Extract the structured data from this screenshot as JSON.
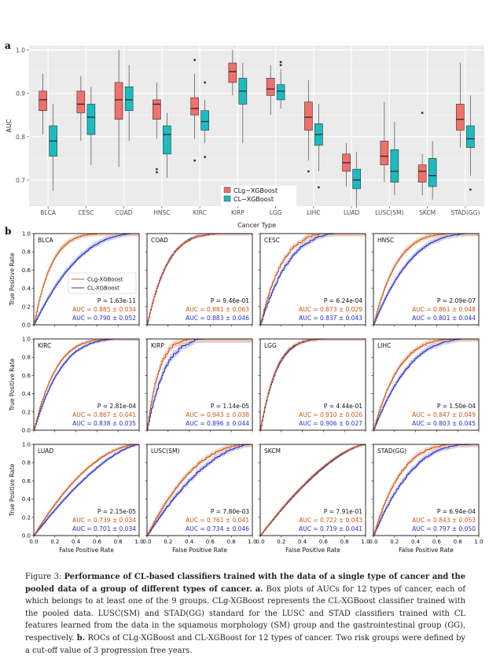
{
  "panel_a": {
    "letter": "a",
    "xlabel": "Cancer Type",
    "ylabel": "AUC",
    "legend": [
      "CLg−XGBoost",
      "CL−XGBoost"
    ],
    "colors": {
      "clg": "#f0706a",
      "cl": "#1bbcc0",
      "grid": "#ffffff",
      "panel": "#ebebeb"
    },
    "chart_data": {
      "type": "box",
      "ylim": [
        0.64,
        1.01
      ],
      "yticks": [
        "0.7",
        "0.8",
        "0.9",
        "1.0"
      ],
      "yticks_values": [
        0.7,
        0.8,
        0.9,
        1.0
      ],
      "categories": [
        "BLCA",
        "CESC",
        "COAD",
        "HNSC",
        "KIRC",
        "KIRP",
        "LGG",
        "LIHC",
        "LUAD",
        "LUSC(SM)",
        "SKCM",
        "STAD(GG)"
      ],
      "series": [
        {
          "name": "CLg−XGBoost",
          "boxes": [
            {
              "q1": 0.86,
              "med": 0.885,
              "q3": 0.905,
              "lo": 0.805,
              "hi": 0.945,
              "out": []
            },
            {
              "q1": 0.855,
              "med": 0.875,
              "q3": 0.905,
              "lo": 0.79,
              "hi": 0.94,
              "out": []
            },
            {
              "q1": 0.84,
              "med": 0.885,
              "q3": 0.925,
              "lo": 0.73,
              "hi": 1.0,
              "out": []
            },
            {
              "q1": 0.84,
              "med": 0.875,
              "q3": 0.885,
              "lo": 0.795,
              "hi": 0.925,
              "out": [
                0.725,
                0.718
              ]
            },
            {
              "q1": 0.85,
              "med": 0.865,
              "q3": 0.89,
              "lo": 0.795,
              "hi": 0.945,
              "out": [
                0.977,
                0.745
              ]
            },
            {
              "q1": 0.925,
              "med": 0.95,
              "q3": 0.97,
              "lo": 0.895,
              "hi": 1.0,
              "out": []
            },
            {
              "q1": 0.895,
              "med": 0.91,
              "q3": 0.935,
              "lo": 0.85,
              "hi": 0.965,
              "out": []
            },
            {
              "q1": 0.815,
              "med": 0.845,
              "q3": 0.88,
              "lo": 0.745,
              "hi": 0.93,
              "out": [
                0.72
              ]
            },
            {
              "q1": 0.72,
              "med": 0.74,
              "q3": 0.76,
              "lo": 0.685,
              "hi": 0.785,
              "out": []
            },
            {
              "q1": 0.735,
              "med": 0.755,
              "q3": 0.79,
              "lo": 0.695,
              "hi": 0.88,
              "out": []
            },
            {
              "q1": 0.695,
              "med": 0.72,
              "q3": 0.735,
              "lo": 0.665,
              "hi": 0.76,
              "out": [
                0.855
              ]
            },
            {
              "q1": 0.815,
              "med": 0.84,
              "q3": 0.875,
              "lo": 0.775,
              "hi": 0.97,
              "out": []
            }
          ]
        },
        {
          "name": "CL−XGBoost",
          "boxes": [
            {
              "q1": 0.755,
              "med": 0.79,
              "q3": 0.825,
              "lo": 0.675,
              "hi": 0.875,
              "out": []
            },
            {
              "q1": 0.805,
              "med": 0.845,
              "q3": 0.875,
              "lo": 0.735,
              "hi": 0.915,
              "out": []
            },
            {
              "q1": 0.86,
              "med": 0.885,
              "q3": 0.915,
              "lo": 0.79,
              "hi": 0.965,
              "out": []
            },
            {
              "q1": 0.76,
              "med": 0.805,
              "q3": 0.825,
              "lo": 0.705,
              "hi": 0.855,
              "out": []
            },
            {
              "q1": 0.815,
              "med": 0.835,
              "q3": 0.86,
              "lo": 0.785,
              "hi": 0.885,
              "out": [
                0.925,
                0.753
              ]
            },
            {
              "q1": 0.875,
              "med": 0.905,
              "q3": 0.935,
              "lo": 0.785,
              "hi": 0.97,
              "out": []
            },
            {
              "q1": 0.885,
              "med": 0.905,
              "q3": 0.92,
              "lo": 0.865,
              "hi": 0.955,
              "out": [
                0.965,
                0.972
              ]
            },
            {
              "q1": 0.78,
              "med": 0.805,
              "q3": 0.83,
              "lo": 0.72,
              "hi": 0.875,
              "out": [
                0.683
              ]
            },
            {
              "q1": 0.68,
              "med": 0.7,
              "q3": 0.725,
              "lo": 0.635,
              "hi": 0.765,
              "out": []
            },
            {
              "q1": 0.695,
              "med": 0.72,
              "q3": 0.77,
              "lo": 0.665,
              "hi": 0.835,
              "out": []
            },
            {
              "q1": 0.685,
              "med": 0.71,
              "q3": 0.75,
              "lo": 0.655,
              "hi": 0.79,
              "out": []
            },
            {
              "q1": 0.775,
              "med": 0.795,
              "q3": 0.825,
              "lo": 0.71,
              "hi": 0.895,
              "out": [
                0.678
              ]
            }
          ]
        }
      ]
    }
  },
  "panel_b": {
    "letter": "b",
    "xlabel": "False Positive Rate",
    "ylabel": "True Positive Rate",
    "ticks": [
      "0.0",
      "0.2",
      "0.4",
      "0.6",
      "0.8",
      "1.0"
    ],
    "legend": [
      "CLg-XGBoost",
      "CL-XGBoost"
    ],
    "colors": {
      "clg": "#d0551b",
      "cl": "#2330c4",
      "clg_band": "#f3c6ad",
      "cl_band": "#c2c6ee",
      "pval": "#111111"
    },
    "chart_data": {
      "type": "line",
      "xlim": [
        0,
        1
      ],
      "ylim": [
        0,
        1
      ],
      "panels": [
        {
          "name": "BLCA",
          "p": "P = 1.63e-11",
          "clg": "AUC = 0.885 ± 0.034",
          "cl": "AUC = 0.790 ± 0.052",
          "sClg": 6,
          "sCl": 2.4,
          "band": 0.03,
          "jag": 0.01
        },
        {
          "name": "COAD",
          "p": "P = 9.46e-01",
          "clg": "AUC = 0.881 ± 0.063",
          "cl": "AUC = 0.883 ± 0.046",
          "sClg": 5.2,
          "sCl": 5.3,
          "band": 0.02,
          "jag": 0.015
        },
        {
          "name": "CESC",
          "p": "P = 6.24e-04",
          "clg": "AUC = 0.873 ± 0.029",
          "cl": "AUC = 0.837 ± 0.043",
          "sClg": 5.0,
          "sCl": 3.8,
          "band": 0.03,
          "jag": 0.04
        },
        {
          "name": "HNSC",
          "p": "P = 2.09e-07",
          "clg": "AUC = 0.861 ± 0.048",
          "cl": "AUC = 0.801 ± 0.044",
          "sClg": 4.6,
          "sCl": 2.9,
          "band": 0.03,
          "jag": 0.01
        },
        {
          "name": "KIRC",
          "p": "P = 2.81e-04",
          "clg": "AUC = 0.867 ± 0.041",
          "cl": "AUC = 0.838 ± 0.035",
          "sClg": 4.8,
          "sCl": 3.9,
          "band": 0.02,
          "jag": 0.01
        },
        {
          "name": "KIRP",
          "p": "P = 1.14e-05",
          "clg": "AUC = 0.943 ± 0.038",
          "cl": "AUC = 0.896 ± 0.044",
          "sClg": 9.0,
          "sCl": 6.0,
          "band": 0.04,
          "jag": 0.05
        },
        {
          "name": "LGG",
          "p": "P = 4.44e-01",
          "clg": "AUC = 0.910 ± 0.026",
          "cl": "AUC = 0.906 ± 0.027",
          "sClg": 6.8,
          "sCl": 6.5,
          "band": 0.02,
          "jag": 0.015
        },
        {
          "name": "LIHC",
          "p": "P = 1.50e-04",
          "clg": "AUC = 0.847 ± 0.049",
          "cl": "AUC = 0.803 ± 0.045",
          "sClg": 4.2,
          "sCl": 3.0,
          "band": 0.03,
          "jag": 0.015
        },
        {
          "name": "LUAD",
          "p": "P = 2.15e-05",
          "clg": "AUC = 0.739 ± 0.034",
          "cl": "AUC = 0.701 ± 0.034",
          "sClg": 1.9,
          "sCl": 1.5,
          "band": 0.02,
          "jag": 0.01
        },
        {
          "name": "LUSC(SM)",
          "p": "P = 7.80e-03",
          "clg": "AUC = 0.761 ± 0.041",
          "cl": "AUC = 0.734 ± 0.046",
          "sClg": 2.3,
          "sCl": 1.8,
          "band": 0.03,
          "jag": 0.02
        },
        {
          "name": "SKCM",
          "p": "P = 7.91e-01",
          "clg": "AUC = 0.722 ± 0.043",
          "cl": "AUC = 0.719 ± 0.041",
          "sClg": 1.55,
          "sCl": 1.5,
          "band": 0.015,
          "jag": 0.005
        },
        {
          "name": "STAD(GG)",
          "p": "P = 6.94e-04",
          "clg": "AUC = 0.843 ± 0.053",
          "cl": "AUC = 0.797 ± 0.050",
          "sClg": 3.9,
          "sCl": 2.8,
          "band": 0.03,
          "jag": 0.02
        }
      ]
    }
  },
  "caption": {
    "figure_label": "Figure 3:",
    "title": "Performance of CL-based classifiers trained with the data of a single type of cancer and the pooled data of a group of different types of cancer.",
    "a_label": "a.",
    "a_text": "Box plots of AUCs for 12 types of cancer, each of which belongs to at least one of the 9 groups. CLg-XGBoost represents the CL-XGBoost classifier trained with the pooled data. LUSC(SM) and STAD(GG) standard for the LUSC and STAD classifiers trained with CL features learned from the data in the squamous morphology (SM) group and the gastrointestinal group (GG), respectively.",
    "b_label": "b.",
    "b_text": "ROCs of CLg-XGBoost and CL-XGBoost for 12 types of cancer. Two risk groups were defined by a cut-off value of 3 progression free years."
  }
}
